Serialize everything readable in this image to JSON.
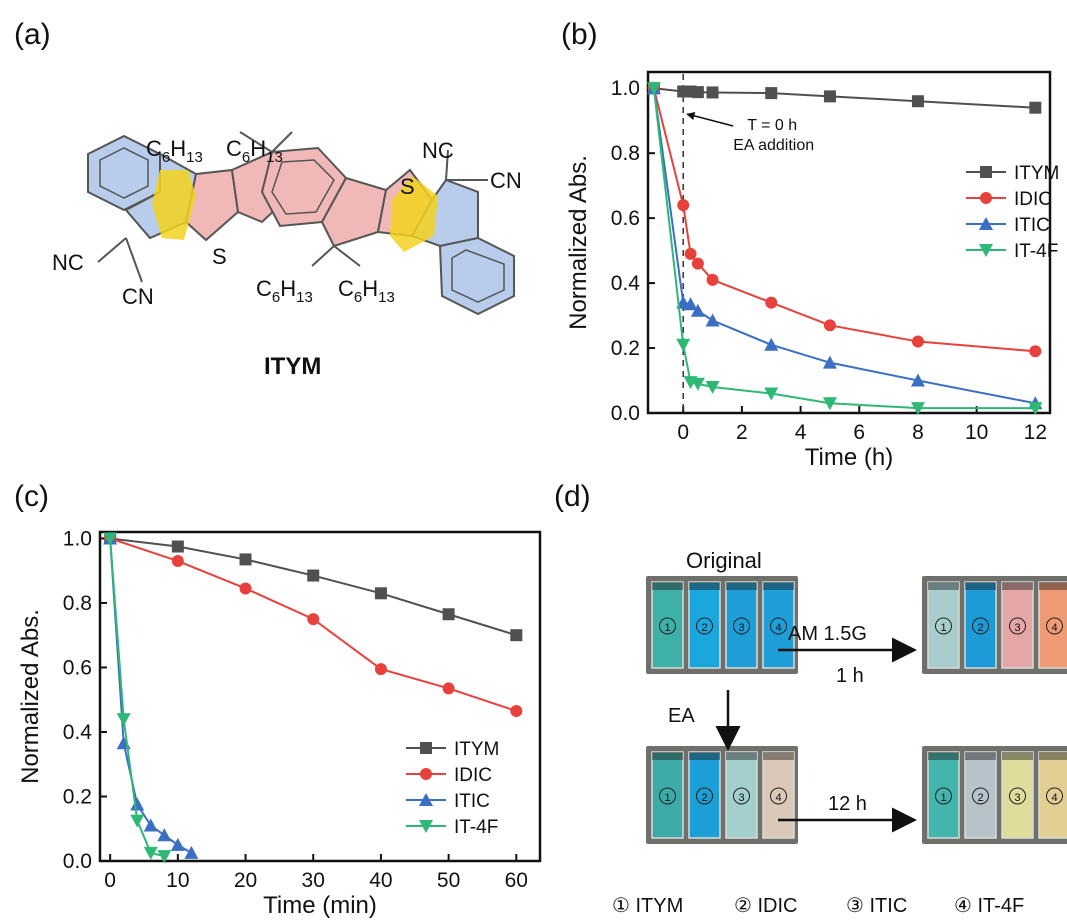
{
  "panels": {
    "a": "(a)",
    "b": "(b)",
    "c": "(c)",
    "d": "(d)"
  },
  "molecule": {
    "name": "ITYM",
    "labels": [
      "C6H13",
      "C6H13",
      "C6H13",
      "C6H13",
      "NC",
      "CN",
      "NC",
      "CN",
      "S",
      "S"
    ]
  },
  "chart_data": [
    {
      "type": "line",
      "panel": "b",
      "xlabel": "Time (h)",
      "ylabel": "Normalized Abs.",
      "xlim": [
        -1.2,
        12.5
      ],
      "ylim": [
        0.0,
        1.05
      ],
      "xticks": [
        0,
        2,
        4,
        6,
        8,
        10,
        12
      ],
      "yticks": [
        0.0,
        0.2,
        0.4,
        0.6,
        0.8,
        1.0
      ],
      "xtick_labels": [
        "0",
        "2",
        "4",
        "6",
        "8",
        "10",
        "12"
      ],
      "ytick_labels": [
        "0.0",
        "0.2",
        "0.4",
        "0.6",
        "0.8",
        "1.0"
      ],
      "annotation": {
        "line1": "T = 0 h",
        "line2": "EA addition",
        "x": 0
      },
      "legend_position": "right",
      "series": [
        {
          "name": "ITYM",
          "color": "#505050",
          "marker": "square",
          "x": [
            -1,
            0,
            0.25,
            0.5,
            1,
            3,
            5,
            8,
            12
          ],
          "y": [
            1.0,
            0.99,
            0.99,
            0.988,
            0.987,
            0.985,
            0.975,
            0.96,
            0.94
          ]
        },
        {
          "name": "IDIC",
          "color": "#e8413c",
          "marker": "circle",
          "x": [
            -1,
            0,
            0.25,
            0.5,
            1,
            3,
            5,
            8,
            12
          ],
          "y": [
            1.0,
            0.64,
            0.49,
            0.46,
            0.41,
            0.34,
            0.27,
            0.22,
            0.19
          ]
        },
        {
          "name": "ITIC",
          "color": "#3a6fc4",
          "marker": "triangle-up",
          "x": [
            -1,
            0,
            0.25,
            0.5,
            1,
            3,
            5,
            8,
            12
          ],
          "y": [
            1.0,
            0.34,
            0.335,
            0.315,
            0.285,
            0.21,
            0.155,
            0.1,
            0.03
          ]
        },
        {
          "name": "IT-4F",
          "color": "#2fb875",
          "marker": "triangle-down",
          "x": [
            -1,
            0,
            0.25,
            0.5,
            1,
            3,
            5,
            8,
            12
          ],
          "y": [
            1.0,
            0.21,
            0.095,
            0.09,
            0.08,
            0.06,
            0.03,
            0.015,
            0.015
          ]
        }
      ]
    },
    {
      "type": "line",
      "panel": "c",
      "xlabel": "Time (min)",
      "ylabel": "Normalized Abs.",
      "xlim": [
        -1.5,
        63.5
      ],
      "ylim": [
        0.0,
        1.02
      ],
      "xticks": [
        0,
        10,
        20,
        30,
        40,
        50,
        60
      ],
      "yticks": [
        0.0,
        0.2,
        0.4,
        0.6,
        0.8,
        1.0
      ],
      "xtick_labels": [
        "0",
        "10",
        "20",
        "30",
        "40",
        "50",
        "60"
      ],
      "ytick_labels": [
        "0.0",
        "0.2",
        "0.4",
        "0.6",
        "0.8",
        "1.0"
      ],
      "legend_position": "bottom-right",
      "series": [
        {
          "name": "ITYM",
          "color": "#505050",
          "marker": "square",
          "x": [
            0,
            10,
            20,
            30,
            40,
            50,
            60
          ],
          "y": [
            1.0,
            0.975,
            0.935,
            0.885,
            0.83,
            0.765,
            0.7
          ]
        },
        {
          "name": "IDIC",
          "color": "#e8413c",
          "marker": "circle",
          "x": [
            0,
            10,
            20,
            30,
            40,
            50,
            60
          ],
          "y": [
            1.0,
            0.93,
            0.845,
            0.75,
            0.595,
            0.535,
            0.465
          ]
        },
        {
          "name": "ITIC",
          "color": "#3a6fc4",
          "marker": "triangle-up",
          "x": [
            0,
            2,
            4,
            6,
            8,
            10,
            12
          ],
          "y": [
            1.0,
            0.365,
            0.175,
            0.11,
            0.08,
            0.05,
            0.025
          ]
        },
        {
          "name": "IT-4F",
          "color": "#2fb875",
          "marker": "triangle-down",
          "x": [
            0,
            2,
            4,
            6,
            8
          ],
          "y": [
            1.0,
            0.44,
            0.125,
            0.025,
            0.015
          ]
        }
      ]
    }
  ],
  "photos": {
    "original_label": "Original",
    "light_label": "AM 1.5G",
    "light_time": "1 h",
    "ea_label": "EA",
    "ea_time": "12 h",
    "vial_numbers": [
      "①",
      "②",
      "③",
      "④"
    ],
    "legend": [
      "① ITYM",
      "② IDIC",
      "③ ITIC",
      "④ IT-4F"
    ],
    "original_colors": [
      "#3db0a8",
      "#1aa7dd",
      "#1f9ed8",
      "#1e9fd9"
    ],
    "light_colors": [
      "#a9cdcc",
      "#1d9bd8",
      "#e4a7a6",
      "#ef9b76"
    ],
    "ea_colors": [
      "#3caba7",
      "#1c9fd6",
      "#a3cfcc",
      "#dac9b9"
    ],
    "ea12_colors": [
      "#42b5ad",
      "#b7c3c8",
      "#dfdd9b",
      "#e3cf93"
    ]
  }
}
